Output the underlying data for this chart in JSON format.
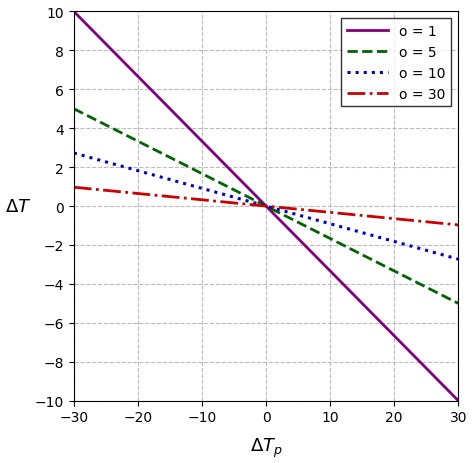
{
  "xlim": [
    -30,
    30
  ],
  "ylim": [
    -10,
    10
  ],
  "xticks": [
    -30,
    -20,
    -10,
    0,
    10,
    20,
    30
  ],
  "yticks": [
    -10,
    -8,
    -6,
    -4,
    -2,
    0,
    2,
    4,
    6,
    8,
    10
  ],
  "grid_color": "#aaaaaa",
  "lines": [
    {
      "o": 1,
      "slope": -0.3333,
      "color": "#800080",
      "linestyle": "solid",
      "linewidth": 2.0,
      "label": "o = 1"
    },
    {
      "o": 5,
      "slope": -0.1667,
      "color": "#006400",
      "linestyle": "dashed",
      "linewidth": 2.0,
      "label": "o = 5"
    },
    {
      "o": 10,
      "slope": -0.0909,
      "color": "#0000CC",
      "linestyle": "dotted",
      "linewidth": 2.2,
      "label": "o = 10"
    },
    {
      "o": 30,
      "slope": -0.0323,
      "color": "#CC0000",
      "linestyle": "dashdot",
      "linewidth": 2.0,
      "label": "o = 30"
    }
  ],
  "legend_loc": "upper right",
  "background_color": "#ffffff",
  "fig_width": 4.74,
  "fig_height": 4.64,
  "dpi": 100
}
